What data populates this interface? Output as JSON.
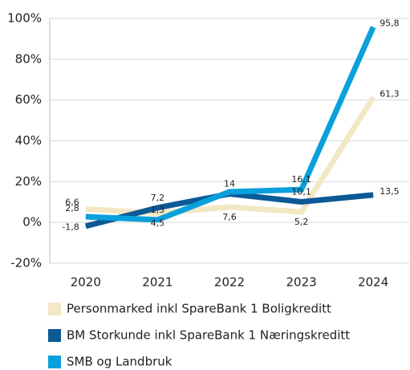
{
  "chart_data": {
    "type": "line",
    "categories": [
      "2020",
      "2021",
      "2022",
      "2023",
      "2024"
    ],
    "ylim": [
      -20,
      100
    ],
    "yticks": [
      {
        "value": -20,
        "label": "-20%"
      },
      {
        "value": 0,
        "label": "0%"
      },
      {
        "value": 20,
        "label": "20%"
      },
      {
        "value": 40,
        "label": "40%"
      },
      {
        "value": 60,
        "label": "60%"
      },
      {
        "value": 80,
        "label": "80%"
      },
      {
        "value": 100,
        "label": "100%"
      }
    ],
    "grid": true,
    "legend": "bottom",
    "series": [
      {
        "name": "Personmarked inkl SpareBank 1 Boligkreditt",
        "color": "#f3e7c4",
        "values": [
          6.6,
          4.5,
          7.6,
          5.2,
          61.3
        ],
        "value_labels": [
          "6,6",
          "4,5",
          "7,6",
          "5,2",
          "61,3"
        ]
      },
      {
        "name": "BM Storkunde inkl SpareBank 1 Næringskreditt",
        "color": "#0b5a96",
        "values": [
          -1.8,
          7.2,
          14,
          10.1,
          13.5
        ],
        "value_labels": [
          "-1,8",
          "7,2",
          "14",
          "10,1",
          "13,5"
        ]
      },
      {
        "name": "SMB og Landbruk",
        "color": "#0aa0dc",
        "values": [
          2.8,
          1.3,
          15,
          16.1,
          95.8
        ],
        "value_labels": [
          "2,8",
          "1,3",
          null,
          "16,1",
          "95,8"
        ]
      }
    ]
  }
}
